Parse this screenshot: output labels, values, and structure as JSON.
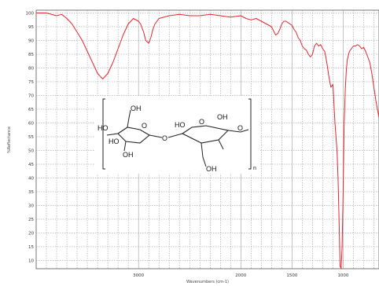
{
  "chart_data": {
    "type": "line",
    "xlabel": "Wavenumbers (cm-1)",
    "ylabel": "%Reflectance",
    "x_reversed": true,
    "xlim": [
      4000,
      650
    ],
    "ylim": [
      7,
      101
    ],
    "x_ticks": [
      3000,
      2000,
      1500,
      1000
    ],
    "y_ticks": [
      100,
      95,
      90,
      85,
      80,
      75,
      70,
      65,
      60,
      55,
      50,
      45,
      40,
      35,
      30,
      25,
      20,
      15,
      10
    ],
    "grid": true,
    "series": [
      {
        "color": "#e8242c",
        "x": [
          4000,
          3900,
          3800,
          3750,
          3700,
          3650,
          3600,
          3550,
          3500,
          3450,
          3400,
          3350,
          3300,
          3250,
          3200,
          3150,
          3100,
          3050,
          3000,
          2980,
          2950,
          2930,
          2900,
          2880,
          2860,
          2840,
          2800,
          2700,
          2600,
          2500,
          2400,
          2300,
          2200,
          2100,
          2000,
          1950,
          1900,
          1850,
          1800,
          1750,
          1700,
          1680,
          1660,
          1640,
          1620,
          1600,
          1580,
          1560,
          1540,
          1520,
          1500,
          1480,
          1460,
          1440,
          1420,
          1400,
          1380,
          1360,
          1340,
          1320,
          1300,
          1280,
          1260,
          1240,
          1220,
          1200,
          1180,
          1160,
          1140,
          1120,
          1100,
          1080,
          1060,
          1050,
          1040,
          1030,
          1020,
          1010,
          1000,
          990,
          980,
          970,
          960,
          940,
          920,
          900,
          880,
          860,
          840,
          820,
          800,
          780,
          760,
          740,
          720,
          700,
          680,
          660,
          650
        ],
        "y": [
          100,
          100,
          99,
          99.5,
          98,
          96,
          93,
          90,
          86,
          82,
          78,
          76,
          78,
          82,
          87,
          92,
          96,
          98,
          97,
          96,
          93,
          90,
          89,
          91,
          94,
          96,
          98,
          99,
          99.5,
          99,
          99,
          99.5,
          99,
          98.5,
          99,
          98,
          97.5,
          98,
          97,
          96,
          95,
          93.5,
          92,
          92.5,
          94,
          96,
          97,
          97,
          96.5,
          96,
          95.5,
          94,
          93,
          91,
          90,
          88,
          87,
          86.5,
          85,
          84,
          85,
          88,
          89,
          88,
          88.5,
          87,
          86,
          82,
          77,
          73,
          74,
          60,
          50,
          40,
          25,
          8,
          7,
          15,
          35,
          60,
          72,
          79,
          83,
          86,
          87,
          88,
          88,
          88.5,
          88,
          87,
          87.5,
          86,
          84,
          82,
          78,
          73,
          68,
          64,
          62
        ]
      }
    ],
    "inset": {
      "atom_labels": [
        "OH",
        "HO",
        "HO",
        "O",
        "OH",
        "O",
        "HO",
        "O",
        "OH",
        "O",
        "OH"
      ],
      "subscript": "n"
    }
  }
}
